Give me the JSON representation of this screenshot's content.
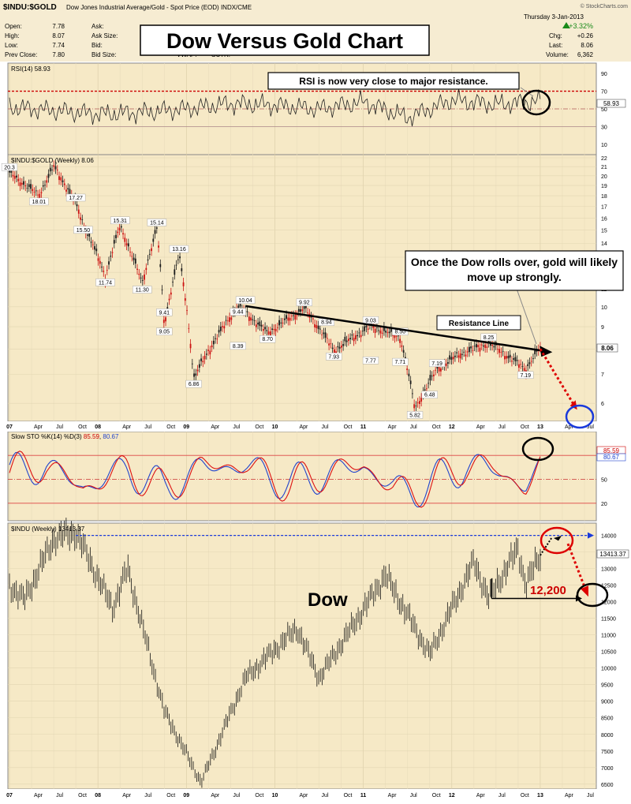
{
  "header": {
    "symbol": "$INDU:$GOLD",
    "description": "Dow Jones Industrial Average/Gold - Spot Price (EOD)  INDX/CME",
    "credit": "© StockCharts.com",
    "date": "Thursday  3-Jan-2013",
    "stats": [
      {
        "label": "Open:",
        "value": "7.78"
      },
      {
        "label": "High:",
        "value": "8.07"
      },
      {
        "label": "Low:",
        "value": "7.74"
      },
      {
        "label": "Prev Close:",
        "value": "7.80"
      }
    ],
    "quote_labels": [
      "Ask:",
      "Ask Size:",
      "Bid:",
      "Bid Size:"
    ],
    "vwap_label": "VWAP:",
    "sctr_label": "SCTR:",
    "change_pct": "+3.32%",
    "right_stats": [
      {
        "label": "Chg:",
        "value": "+0.26"
      },
      {
        "label": "Last:",
        "value": "8.06"
      },
      {
        "label": "Volume:",
        "value": "6,362"
      }
    ],
    "colors": {
      "up": "#1a8a1a",
      "accent": "#cc0000"
    }
  },
  "title": "Dow Versus Gold Chart",
  "rsi_panel": {
    "legend": "RSI(14) 58.93",
    "value_tag": "58.93",
    "y_ticks": [
      "90",
      "70",
      "50",
      "30",
      "10"
    ],
    "annotation": "RSI is now very close to major resistance."
  },
  "ratio_panel": {
    "legend": "$INDU:$GOLD (Weekly) 8.06",
    "last_tag": "8.06",
    "y_ticks": [
      "22",
      "21",
      "20",
      "19",
      "18",
      "17",
      "16",
      "15",
      "14",
      "13",
      "12",
      "11",
      "10",
      "9",
      "8",
      "7",
      "6"
    ],
    "annotation": "Once the Dow rolls over, gold will likely move up strongly.",
    "resistance_label": "Resistance Line",
    "price_labels": [
      "20.3",
      "18.01",
      "17.27",
      "15.50",
      "15.31",
      "15.14",
      "13.16",
      "11.74",
      "11.30",
      "9.44",
      "9.41",
      "9.05",
      "10.04",
      "9.92",
      "8.94",
      "8.70",
      "8.39",
      "6.86",
      "9.03",
      "8.50",
      "7.93",
      "7.77",
      "7.71",
      "7.19",
      "6.48",
      "5.82",
      "8.25",
      "7.19"
    ],
    "x_ticks": [
      "07",
      "Apr",
      "Jul",
      "Oct",
      "08",
      "Apr",
      "Jul",
      "Oct",
      "09",
      "Apr",
      "Jul",
      "Oct",
      "10",
      "Apr",
      "Jul",
      "Oct",
      "11",
      "Apr",
      "Jul",
      "Oct",
      "12",
      "Apr",
      "Jul",
      "Oct",
      "13",
      "Apr",
      "Jul"
    ]
  },
  "sto_panel": {
    "legend_main": "Slow STO %K(14) %D(3)",
    "legend_k": "85.59",
    "legend_d": "80.67",
    "tag_k": "85.59",
    "tag_d": "80.67",
    "y_ticks": [
      "80",
      "50",
      "20"
    ]
  },
  "dow_panel": {
    "legend": "$INDU (Weekly) 13413.37",
    "last_tag": "13413.37",
    "y_ticks": [
      "14000",
      "13500",
      "13000",
      "12500",
      "12000",
      "11500",
      "11000",
      "10500",
      "10000",
      "9500",
      "9000",
      "8500",
      "8000",
      "7500",
      "7000",
      "6500"
    ],
    "dow_label": "Dow",
    "target_label": "12,200",
    "x_ticks": [
      "07",
      "Apr",
      "Jul",
      "Oct",
      "08",
      "Apr",
      "Jul",
      "Oct",
      "09",
      "Apr",
      "Jul",
      "Oct",
      "10",
      "Apr",
      "Jul",
      "Oct",
      "11",
      "Apr",
      "Jul",
      "Oct",
      "12",
      "Apr",
      "Jul",
      "Oct",
      "13",
      "Apr",
      "Jul"
    ]
  },
  "chart_data": [
    {
      "type": "line",
      "name": "RSI(14)",
      "x": [
        "2007-01",
        "2007-07",
        "2008-01",
        "2008-07",
        "2009-01",
        "2009-07",
        "2010-01",
        "2010-07",
        "2011-01",
        "2011-07",
        "2012-01",
        "2012-07",
        "2013-01"
      ],
      "series": [
        {
          "name": "RSI(14)",
          "values": [
            52,
            48,
            44,
            46,
            50,
            56,
            54,
            50,
            58,
            40,
            60,
            55,
            58.93
          ]
        }
      ],
      "ylim": [
        0,
        100
      ],
      "reference_lines": [
        70,
        50,
        30
      ]
    },
    {
      "type": "line",
      "name": "$INDU:$GOLD (Weekly)",
      "x": [
        "2007-01",
        "2007-05",
        "2007-07",
        "2007-10",
        "2007-11",
        "2008-02",
        "2008-04",
        "2008-07",
        "2008-09",
        "2008-10",
        "2008-12",
        "2009-02",
        "2009-08",
        "2009-12",
        "2010-05",
        "2010-09",
        "2011-02",
        "2011-06",
        "2011-08",
        "2011-11",
        "2012-02",
        "2012-06",
        "2012-11",
        "2013-01"
      ],
      "series": [
        {
          "name": "$INDU:$GOLD",
          "values": [
            20.3,
            18.01,
            21.0,
            17.27,
            15.5,
            11.74,
            15.31,
            11.3,
            15.14,
            9.05,
            13.16,
            6.86,
            10.04,
            8.7,
            9.92,
            7.93,
            9.03,
            8.5,
            5.82,
            7.19,
            7.77,
            8.25,
            7.19,
            8.06
          ]
        }
      ],
      "log_scale": true,
      "ylim": [
        5.5,
        22
      ],
      "annotations": [
        {
          "text": "Resistance Line",
          "from": [
            "2009-09",
            10.04
          ],
          "to": [
            "2013-02",
            7.9
          ]
        },
        {
          "text": "projection",
          "from": [
            "2013-01",
            8.0
          ],
          "to": [
            "2013-06",
            5.8
          ]
        }
      ]
    },
    {
      "type": "line",
      "name": "Slow STO %K(14) %D(3)",
      "x": [
        "2007-01",
        "2007-06",
        "2007-11",
        "2008-05",
        "2008-10",
        "2009-03",
        "2009-09",
        "2010-03",
        "2010-08",
        "2011-01",
        "2011-05",
        "2011-08",
        "2012-03",
        "2012-07",
        "2012-11",
        "2013-01"
      ],
      "series": [
        {
          "name": "%K(14)",
          "values": [
            70,
            95,
            20,
            85,
            15,
            90,
            95,
            30,
            70,
            95,
            20,
            10,
            95,
            85,
            20,
            85.59
          ]
        },
        {
          "name": "%D(3)",
          "values": [
            68,
            92,
            24,
            82,
            18,
            86,
            92,
            34,
            66,
            92,
            24,
            14,
            92,
            82,
            24,
            80.67
          ]
        }
      ],
      "ylim": [
        0,
        100
      ],
      "reference_lines": [
        80,
        50,
        20
      ]
    },
    {
      "type": "line",
      "name": "$INDU (Weekly)",
      "x": [
        "2007-01",
        "2007-03",
        "2007-07",
        "2007-10",
        "2008-03",
        "2008-05",
        "2008-10",
        "2009-03",
        "2009-09",
        "2010-04",
        "2010-07",
        "2011-04",
        "2011-10",
        "2012-04",
        "2012-06",
        "2012-10",
        "2012-11",
        "2013-01"
      ],
      "series": [
        {
          "name": "$INDU",
          "values": [
            12500,
            12050,
            13900,
            14100,
            11800,
            13000,
            8700,
            6550,
            9700,
            11200,
            9700,
            12800,
            10400,
            13200,
            12100,
            13600,
            12500,
            13413.37
          ]
        }
      ],
      "ylim": [
        6500,
        14200
      ],
      "annotations": [
        {
          "text": "12,200",
          "level": 12200
        },
        {
          "text": "prior high",
          "level": 14000
        }
      ]
    }
  ]
}
